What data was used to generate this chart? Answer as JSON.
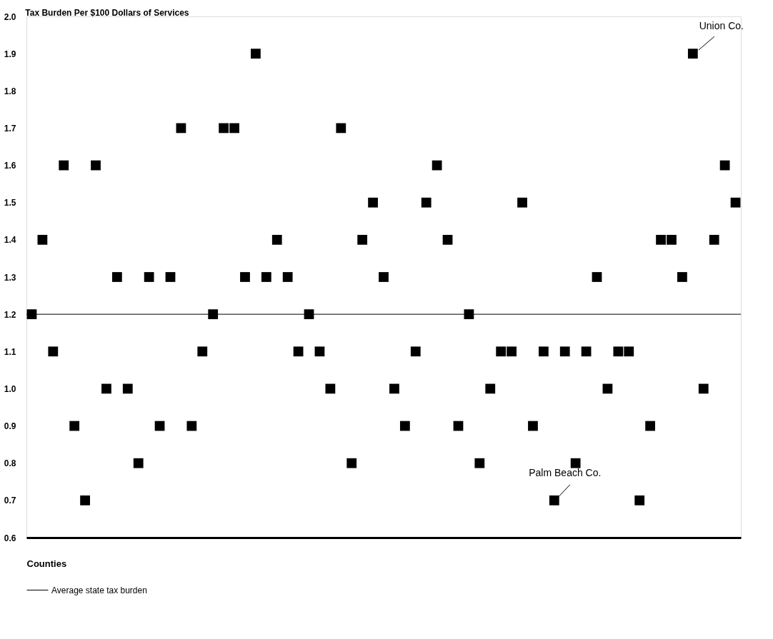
{
  "chart_data": {
    "type": "scatter",
    "title": "Tax Burden Per $100 Dollars of Services",
    "xlabel": "Counties",
    "categories": [
      null,
      null,
      null,
      null,
      null,
      null,
      null,
      null,
      null,
      null,
      null,
      null,
      null,
      null,
      null,
      null,
      null,
      null,
      null,
      null,
      null,
      null,
      null,
      null,
      null,
      null,
      null,
      null,
      null,
      null,
      null,
      null,
      null,
      null,
      null,
      null,
      null,
      null,
      null,
      null,
      null,
      null,
      null,
      null,
      null,
      null,
      null,
      null,
      null,
      null,
      null,
      null,
      null,
      null,
      null,
      null,
      null,
      null,
      null,
      null,
      null,
      null,
      null,
      null,
      null,
      null,
      null
    ],
    "series": [
      {
        "color": "#000000",
        "values": [
          1.2,
          1.4,
          1.1,
          1.6,
          0.9,
          0.7,
          1.6,
          1.0,
          1.3,
          1.0,
          0.8,
          1.3,
          0.9,
          1.3,
          1.7,
          0.9,
          1.1,
          1.2,
          1.7,
          1.7,
          1.3,
          1.9,
          1.3,
          1.4,
          1.3,
          1.1,
          1.2,
          1.1,
          1.0,
          1.7,
          0.8,
          1.4,
          1.5,
          1.3,
          1.0,
          0.9,
          1.1,
          1.5,
          1.6,
          1.4,
          0.9,
          1.2,
          0.8,
          1.0,
          1.1,
          1.1,
          1.5,
          0.9,
          1.1,
          0.7,
          1.1,
          0.8,
          1.1,
          1.3,
          1.0,
          1.1,
          1.1,
          0.7,
          0.9,
          1.4,
          1.4,
          1.3,
          1.9,
          1.0,
          1.4,
          1.6,
          1.5
        ]
      }
    ],
    "ylim": [
      0.6,
      2.0
    ],
    "yticks": [
      {
        "value": 0.6,
        "label": "0.6"
      },
      0.7,
      0.8,
      0.9,
      {
        "value": 1.0,
        "label": "1.0"
      },
      1.1,
      1.2,
      1.3,
      1.4,
      1.5,
      1.6,
      1.7,
      1.8,
      1.9,
      {
        "value": 2.0,
        "label": "2.0"
      }
    ],
    "ref_lines": [
      {
        "axis": "y",
        "value": 1.2,
        "label": "Average state tax burden",
        "color": "#000000",
        "line_style": "solid"
      }
    ],
    "annotations": [
      "Union Co.",
      "Palm Beach Co."
    ],
    "marker": "square",
    "grid": false,
    "legend": "bottom",
    "tick_labels": "y"
  }
}
